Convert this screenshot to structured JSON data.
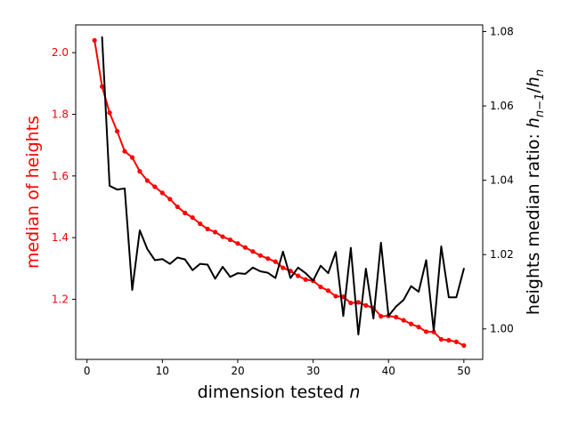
{
  "chart_data": {
    "type": "line",
    "x": [
      1,
      2,
      3,
      4,
      5,
      6,
      7,
      8,
      9,
      10,
      11,
      12,
      13,
      14,
      15,
      16,
      17,
      18,
      19,
      20,
      21,
      22,
      23,
      24,
      25,
      26,
      27,
      28,
      29,
      30,
      31,
      32,
      33,
      34,
      35,
      36,
      37,
      38,
      39,
      40,
      41,
      42,
      43,
      44,
      45,
      46,
      47,
      48,
      49,
      50
    ],
    "xlabel_main": "dimension tested ",
    "xlabel_var": "n",
    "xlim": [
      -1.5,
      52.5
    ],
    "xticks": [
      0,
      10,
      20,
      30,
      40,
      50
    ],
    "left_axis": {
      "label": "median of heights",
      "color": "#ff0000",
      "ylim": [
        1.005,
        2.09
      ],
      "ticks": [
        1.2,
        1.4,
        1.6,
        1.8,
        2.0
      ],
      "tick_labels": [
        "1.2",
        "1.4",
        "1.6",
        "1.8",
        "2.0"
      ]
    },
    "right_axis": {
      "label_main": "heights median ratio: ",
      "label_math": "h",
      "label_sub1": "n−1",
      "label_sep": "/",
      "label_math2": "h",
      "label_sub2": "n",
      "color": "#000000",
      "ylim": [
        0.9918,
        1.0818
      ],
      "ticks": [
        1.0,
        1.02,
        1.04,
        1.06,
        1.08
      ],
      "tick_labels": [
        "1.00",
        "1.02",
        "1.04",
        "1.06",
        "1.08"
      ]
    },
    "series": [
      {
        "axis": "left",
        "color": "#ff0000",
        "markers": true,
        "x": [
          1,
          2,
          3,
          4,
          5,
          6,
          7,
          8,
          9,
          10,
          11,
          12,
          13,
          14,
          15,
          16,
          17,
          18,
          19,
          20,
          21,
          22,
          23,
          24,
          25,
          26,
          27,
          28,
          29,
          30,
          31,
          32,
          33,
          34,
          35,
          36,
          37,
          38,
          39,
          40,
          41,
          42,
          43,
          44,
          45,
          46,
          47,
          48,
          49,
          50
        ],
        "values": [
          2.04,
          1.89,
          1.805,
          1.745,
          1.68,
          1.66,
          1.615,
          1.585,
          1.565,
          1.545,
          1.525,
          1.5,
          1.48,
          1.465,
          1.445,
          1.428,
          1.418,
          1.403,
          1.393,
          1.381,
          1.368,
          1.355,
          1.342,
          1.332,
          1.322,
          1.302,
          1.292,
          1.276,
          1.264,
          1.26,
          1.24,
          1.228,
          1.21,
          1.208,
          1.188,
          1.19,
          1.18,
          1.172,
          1.145,
          1.146,
          1.142,
          1.132,
          1.12,
          1.11,
          1.095,
          1.094,
          1.07,
          1.067,
          1.062,
          1.05
        ]
      },
      {
        "axis": "right",
        "color": "#000000",
        "markers": false,
        "x": [
          2,
          3,
          4,
          5,
          6,
          7,
          8,
          9,
          10,
          11,
          12,
          13,
          14,
          15,
          16,
          17,
          18,
          19,
          20,
          21,
          22,
          23,
          24,
          25,
          26,
          27,
          28,
          29,
          30,
          31,
          32,
          33,
          34,
          35,
          36,
          37,
          38,
          39,
          40,
          41,
          42,
          43,
          44,
          45,
          46,
          47,
          48,
          49,
          50
        ],
        "values": [
          1.0785,
          1.0385,
          1.0375,
          1.0378,
          1.0105,
          1.0265,
          1.0215,
          1.0185,
          1.0188,
          1.0175,
          1.0192,
          1.0187,
          1.0158,
          1.0175,
          1.0173,
          1.0135,
          1.0167,
          1.014,
          1.015,
          1.0148,
          1.0165,
          1.0155,
          1.0151,
          1.0137,
          1.0208,
          1.0137,
          1.0165,
          1.015,
          1.013,
          1.017,
          1.015,
          1.0207,
          1.0035,
          1.0218,
          0.9985,
          1.0162,
          1.0028,
          1.0232,
          1.0035,
          1.006,
          1.0078,
          1.0115,
          1.01,
          1.0185,
          0.9995,
          1.0222,
          1.0085,
          1.0085,
          1.0162
        ]
      }
    ]
  }
}
